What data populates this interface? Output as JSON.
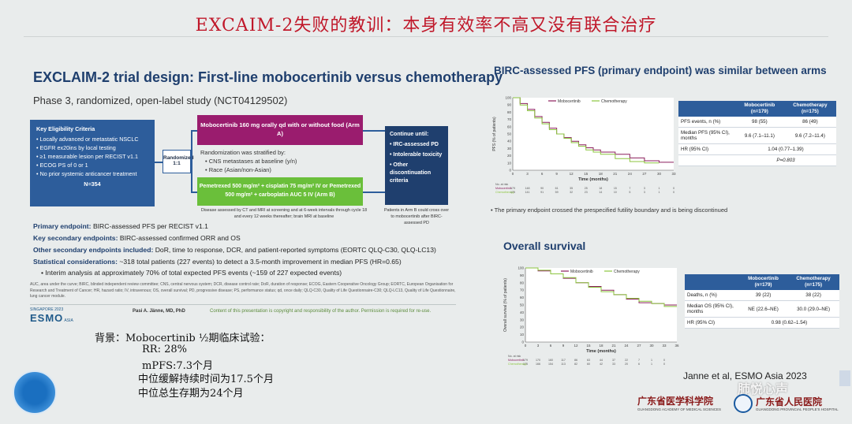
{
  "main_title": "EXCAIM-2失败的教训：本身有效率不高又没有联合治疗",
  "left": {
    "title": "EXCLAIM-2 trial design: First-line mobocertinib versus chemotherapy",
    "subtitle": "Phase 3, randomized, open-label study (NCT04129502)",
    "eligibility": {
      "heading": "Key Eligibility Criteria",
      "items": [
        "Locally advanced or metastatic NSCLC",
        "EGFR ex20ins by local testing",
        "≥1 measurable lesion per RECIST v1.1",
        "ECOG PS of 0 or 1",
        "No prior systemic anticancer treatment"
      ],
      "n": "N=354"
    },
    "randomized": "Randomized 1:1",
    "arm_a": "Mobocertinib 160 mg orally qd with or without food (Arm A)",
    "stratified_heading": "Randomization was stratified by:",
    "stratified_items": [
      "CNS metastases at baseline (y/n)",
      "Race (Asian/non-Asian)"
    ],
    "arm_b": "Pemetrexed 500 mg/m² + cisplatin 75 mg/m² IV or Pemetrexed 500 mg/m² + carboplatin AUC 5 IV (Arm B)",
    "continue": {
      "heading": "Continue until:",
      "items": [
        "IRC-assessed PD",
        "Intolerable toxicity",
        "Other discontinuation criteria"
      ]
    },
    "assess_note": "Disease assessed by CT and MRI at screening and at 6-week intervals through cycle 18 and every 12 weeks thereafter; brain MRI at baseline",
    "cross_note": "Patients in Arm B could cross over to mobocertinib after BIRC-assessed PD",
    "primary_label": "Primary endpoint:",
    "primary_text": "BIRC-assessed PFS per RECIST v1.1",
    "secondary_label": "Key secondary endpoints:",
    "secondary_text": "BIRC-assessed confirmed ORR and OS",
    "other_label": "Other secondary endpoints included:",
    "other_text": "DoR, time to response, DCR, and patient-reported symptoms (EORTC QLQ-C30, QLQ-LC13)",
    "stat_label": "Statistical considerations:",
    "stat_text": "~318 total patients (227 events) to detect a 3.5-month improvement in median PFS (HR=0.65)",
    "interim_text": "Interim analysis at approximately 70% of total expected PFS events (~159 of 227 expected events)",
    "abbreviations": "AUC, area under the curve; BIRC, blinded independent review committee; CNS, central nervous system; DCR, disease control rate; DoR, duration of response; ECOG, Eastern Cooperative Oncology Group; EORTC, European Organisation for Research and Treatment of Cancer; HR, hazard ratio; IV, intravenous; OS, overall survival; PD, progressive disease; PS, performance status; qd, once daily; QLQ-C30, Quality of Life Questionnaire-C30; QLQ-LC13, Quality of Life Questionnaire, lung cancer module.",
    "esmo_small": "SINGAPORE 2023",
    "esmo_big": "ESMO",
    "esmo_asia": "ASIA",
    "presenter": "Pasi A. Jänne, MD, PhD",
    "copyright": "Content of this presentation is copyright and responsibility of the author. Permission is required for re-use."
  },
  "handwritten": {
    "line1": "背景：Mobocertinib ½期临床试验：",
    "line2": "RR: 28%",
    "line3": "mPFS:7.3个月",
    "line4": "中位缓解持续时间为17.5个月",
    "line5": "中位总生存期为24个月"
  },
  "right": {
    "pfs_title": "BIRC-assessed PFS (primary endpoint) was similar between arms",
    "pfs_bullet": "The primary endpoint crossed the prespecified futility boundary and is being discontinued",
    "os_title": "Overall survival",
    "pfs_table": {
      "headers": [
        "",
        "Mobocertinib (n=179)",
        "Chemotherapy (n=175)"
      ],
      "rows": [
        [
          "PFS events, n (%)",
          "98 (55)",
          "86 (49)"
        ],
        [
          "Median PFS (95% CI), months",
          "9.6 (7.1–11.1)",
          "9.6 (7.2–11.4)"
        ],
        [
          "HR (95% CI)",
          "1.04 (0.77–1.39)",
          ""
        ],
        [
          "",
          "P=0.803",
          ""
        ]
      ]
    },
    "os_table": {
      "headers": [
        "",
        "Mobocertinib (n=179)",
        "Chemotherapy (n=175)"
      ],
      "rows": [
        [
          "Deaths, n (%)",
          "39 (22)",
          "38 (22)"
        ],
        [
          "Median OS (95% CI), months",
          "NE (22.6–NE)",
          "30.0 (29.0–NE)"
        ],
        [
          "HR (95% CI)",
          "0.98 (0.62–1.54)",
          ""
        ]
      ]
    },
    "citation": "Janne et al, ESMO Asia 2023",
    "wechat": "肺悦心声",
    "academy": "广东省医学科学院",
    "academy_sub": "GUANGDONG ACADEMY OF MEDICAL SCIENCES",
    "hospital": "广东省人民医院",
    "hospital_sub": "GUANGDONG PROVINCIAL PEOPLE'S HOSPITAL"
  },
  "chart_data": [
    {
      "type": "line",
      "title": "BIRC-assessed PFS (primary endpoint) was similar between arms",
      "xlabel": "Time (months)",
      "ylabel": "PFS (% of patients)",
      "xlim": [
        0,
        33
      ],
      "ylim": [
        0,
        100
      ],
      "xticks": [
        0,
        3,
        6,
        9,
        12,
        15,
        18,
        21,
        24,
        27,
        30,
        33
      ],
      "yticks": [
        0,
        10,
        20,
        30,
        40,
        50,
        60,
        70,
        80,
        90,
        100
      ],
      "legend": "top",
      "series": [
        {
          "name": "Mobocertinib",
          "color": "#8b1e5c",
          "x": [
            0,
            1.5,
            3,
            4.5,
            6,
            7.5,
            9,
            10.5,
            12,
            13.5,
            15,
            16.5,
            18,
            21,
            24,
            27,
            30,
            33
          ],
          "y": [
            100,
            92,
            84,
            74,
            66,
            58,
            50,
            45,
            40,
            35,
            31,
            28,
            25,
            22,
            17,
            13,
            11,
            11
          ]
        },
        {
          "name": "Chemotherapy",
          "color": "#8cc63f",
          "x": [
            0,
            1.5,
            3,
            4.5,
            6,
            7.5,
            9,
            10.5,
            12,
            13.5,
            15,
            16.5,
            18,
            21,
            24,
            27,
            30
          ],
          "y": [
            100,
            90,
            82,
            72,
            64,
            56,
            50,
            44,
            38,
            33,
            28,
            25,
            22,
            16,
            12,
            10,
            10
          ]
        }
      ],
      "at_risk": {
        "label": "No. at risk",
        "rows": [
          {
            "name": "Mobocertinib",
            "values": [
              "179",
              "148",
              "90",
              "61",
              "35",
              "25",
              "18",
              "15",
              "7",
              "3",
              "1",
              "0"
            ]
          },
          {
            "name": "Chemotherapy",
            "values": [
              "175",
              "141",
              "91",
              "59",
              "32",
              "23",
              "14",
              "10",
              "5",
              "3",
              "1",
              "0"
            ]
          }
        ]
      }
    },
    {
      "type": "line",
      "title": "Overall survival",
      "xlabel": "Time (months)",
      "ylabel": "Overall survival (% of patients)",
      "xlim": [
        0,
        36
      ],
      "ylim": [
        0,
        100
      ],
      "xticks": [
        0,
        3,
        6,
        9,
        12,
        15,
        18,
        21,
        24,
        27,
        30,
        33,
        36
      ],
      "yticks": [
        0,
        10,
        20,
        30,
        40,
        50,
        60,
        70,
        80,
        90,
        100
      ],
      "legend": "top",
      "series": [
        {
          "name": "Mobocertinib",
          "color": "#8b1e5c",
          "x": [
            0,
            3,
            6,
            9,
            12,
            15,
            18,
            21,
            24,
            27,
            30,
            33,
            36
          ],
          "y": [
            100,
            96,
            92,
            86,
            80,
            75,
            70,
            64,
            58,
            53,
            52,
            50,
            50
          ]
        },
        {
          "name": "Chemotherapy",
          "color": "#8cc63f",
          "x": [
            0,
            3,
            6,
            9,
            12,
            15,
            18,
            21,
            24,
            27,
            30,
            33,
            36
          ],
          "y": [
            100,
            97,
            92,
            87,
            80,
            74,
            68,
            64,
            59,
            55,
            52,
            48,
            48
          ]
        }
      ],
      "at_risk": {
        "label": "No. at risk",
        "rows": [
          {
            "name": "Mobocertinib",
            "values": [
              "179",
              "170",
              "160",
              "117",
              "86",
              "63",
              "44",
              "37",
              "22",
              "7",
              "1",
              "0",
              ""
            ]
          },
          {
            "name": "Chemotherapy",
            "values": [
              "175",
              "166",
              "154",
              "113",
              "82",
              "60",
              "42",
              "33",
              "20",
              "6",
              "1",
              "0",
              ""
            ]
          }
        ]
      }
    }
  ]
}
